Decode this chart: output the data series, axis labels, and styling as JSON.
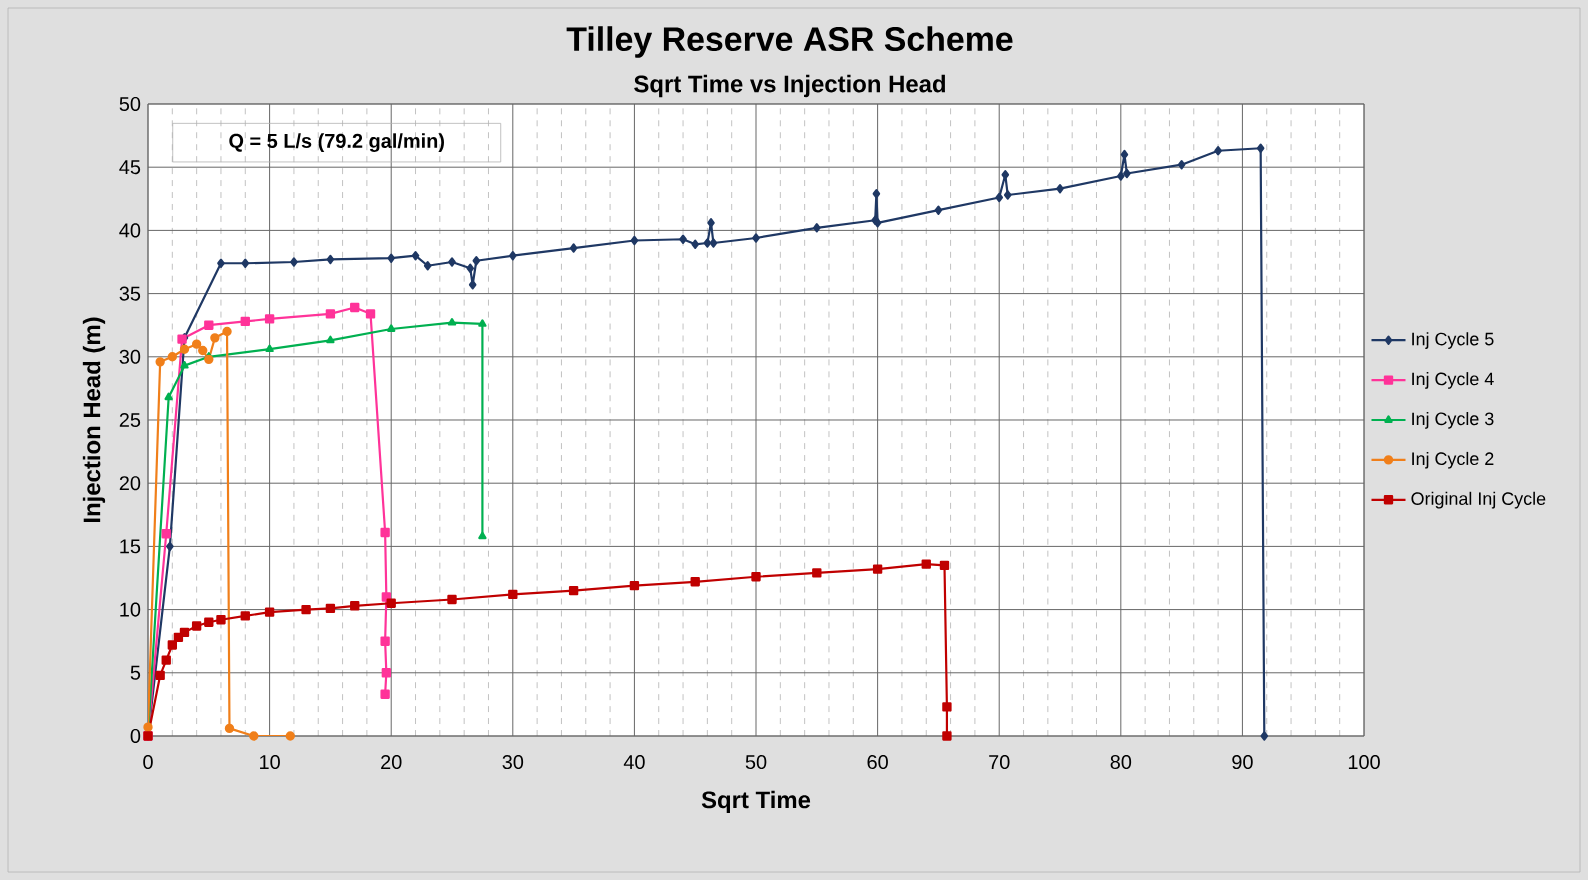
{
  "chart_data": {
    "type": "line",
    "title": "Tilley Reserve ASR Scheme",
    "subtitle": "Sqrt Time vs Injection Head",
    "xlabel": "Sqrt Time",
    "ylabel": "Injection Head (m)",
    "annotations": [
      "Q = 5 L/s  (79.2 gal/min)"
    ],
    "xlim": [
      0,
      100
    ],
    "ylim": [
      0,
      50
    ],
    "xticks": [
      0,
      10,
      20,
      30,
      40,
      50,
      60,
      70,
      80,
      90,
      100
    ],
    "yticks": [
      0,
      5,
      10,
      15,
      20,
      25,
      30,
      35,
      40,
      45,
      50
    ],
    "grid": true,
    "legend": "right",
    "series": [
      {
        "name": "Inj Cycle 5",
        "color": "#1f3864",
        "marker": "diamond",
        "x": [
          0,
          1.8,
          3,
          6,
          8,
          12,
          15,
          20,
          22,
          23,
          25,
          26.5,
          26.7,
          27,
          30,
          35,
          40,
          44,
          45,
          46,
          46.3,
          46.5,
          50,
          55,
          59.8,
          59.9,
          60,
          65,
          70,
          70.5,
          70.7,
          75,
          80,
          80.3,
          80.5,
          85,
          88,
          91.5,
          91.8
        ],
        "values": [
          0,
          15,
          31.5,
          37.4,
          37.4,
          37.5,
          37.7,
          37.8,
          38,
          37.2,
          37.5,
          37,
          35.7,
          37.6,
          38,
          38.6,
          39.2,
          39.3,
          38.9,
          39,
          40.6,
          39,
          39.4,
          40.2,
          40.8,
          42.9,
          40.6,
          41.6,
          42.6,
          44.4,
          42.8,
          43.3,
          44.3,
          46,
          44.5,
          45.2,
          46.3,
          46.5,
          0
        ]
      },
      {
        "name": "Inj Cycle 4",
        "color": "#ff3399",
        "marker": "square",
        "x": [
          0,
          1.5,
          2.8,
          5,
          8,
          10,
          15,
          17,
          18.3,
          19.5,
          19.6,
          19.5,
          19.6,
          19.5
        ],
        "values": [
          0,
          16,
          31.4,
          32.5,
          32.8,
          33,
          33.4,
          33.9,
          33.4,
          16.1,
          11,
          7.5,
          5,
          3.3
        ]
      },
      {
        "name": "Inj Cycle 3",
        "color": "#00b050",
        "marker": "triangle",
        "x": [
          0,
          1.7,
          3,
          5,
          10,
          15,
          20,
          25,
          27.5,
          27.5
        ],
        "values": [
          0,
          26.8,
          29.3,
          30,
          30.6,
          31.3,
          32.2,
          32.7,
          32.6,
          15.8
        ]
      },
      {
        "name": "Inj Cycle 2",
        "color": "#f07f1a",
        "marker": "circle",
        "x": [
          0,
          1,
          2,
          3,
          4,
          4.5,
          5,
          5.5,
          6.5,
          6.7,
          8.7,
          11.7
        ],
        "values": [
          0.7,
          29.6,
          30,
          30.6,
          31,
          30.5,
          29.8,
          31.5,
          32,
          0.6,
          0,
          0
        ]
      },
      {
        "name": "Original Inj Cycle",
        "color": "#c00000",
        "marker": "square",
        "x": [
          0,
          1,
          1.5,
          2,
          2.5,
          3,
          4,
          5,
          6,
          8,
          10,
          13,
          15,
          17,
          20,
          25,
          30,
          35,
          40,
          45,
          50,
          55,
          60,
          64,
          65.5,
          65.7,
          65.7
        ],
        "values": [
          0,
          4.8,
          6,
          7.2,
          7.8,
          8.2,
          8.7,
          9,
          9.2,
          9.5,
          9.8,
          10,
          10.1,
          10.3,
          10.5,
          10.8,
          11.2,
          11.5,
          11.9,
          12.2,
          12.6,
          12.9,
          13.2,
          13.6,
          13.5,
          2.3,
          0
        ]
      }
    ]
  }
}
